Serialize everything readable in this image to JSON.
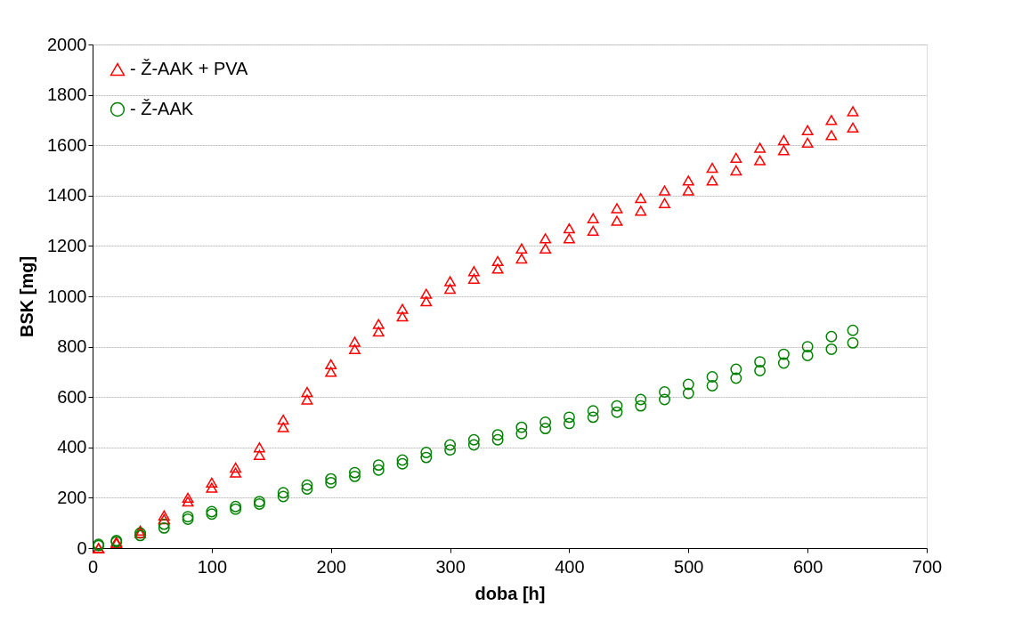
{
  "chart_data": {
    "type": "scatter",
    "xlabel": "doba [h]",
    "ylabel": "BSK [mg]",
    "x": [
      5,
      20,
      40,
      60,
      80,
      100,
      120,
      140,
      160,
      180,
      200,
      220,
      240,
      260,
      280,
      300,
      320,
      340,
      360,
      380,
      400,
      420,
      440,
      460,
      480,
      500,
      520,
      540,
      560,
      580,
      600,
      620,
      638
    ],
    "series": [
      {
        "name": "- Ž-AAK + PVA",
        "color": "#ff0000",
        "marker": "triangle",
        "values": [
          0,
          25,
          70,
          130,
          200,
          260,
          320,
          400,
          510,
          620,
          730,
          820,
          890,
          950,
          1010,
          1060,
          1100,
          1140,
          1190,
          1230,
          1270,
          1310,
          1350,
          1390,
          1420,
          1460,
          1510,
          1550,
          1590,
          1620,
          1660,
          1700,
          1735
        ]
      },
      {
        "color": "#ff0000",
        "marker": "triangle",
        "values": [
          0,
          20,
          60,
          115,
          185,
          240,
          300,
          370,
          480,
          590,
          700,
          790,
          860,
          920,
          980,
          1030,
          1070,
          1110,
          1150,
          1190,
          1230,
          1260,
          1300,
          1340,
          1370,
          1420,
          1460,
          1500,
          1540,
          1580,
          1610,
          1640,
          1670
        ]
      },
      {
        "name": "- Ž-AAK",
        "color": "#008000",
        "marker": "circle",
        "values": [
          15,
          30,
          60,
          95,
          125,
          145,
          165,
          185,
          220,
          250,
          275,
          300,
          330,
          350,
          380,
          410,
          430,
          450,
          480,
          500,
          520,
          545,
          565,
          590,
          620,
          650,
          680,
          710,
          740,
          770,
          800,
          840,
          865
        ]
      },
      {
        "color": "#008000",
        "marker": "circle",
        "values": [
          10,
          25,
          50,
          80,
          115,
          135,
          155,
          175,
          205,
          235,
          260,
          285,
          310,
          335,
          360,
          390,
          410,
          430,
          455,
          475,
          495,
          520,
          540,
          565,
          590,
          615,
          645,
          675,
          705,
          735,
          765,
          790,
          815
        ]
      }
    ],
    "xlim": [
      0,
      700
    ],
    "xticks": [
      0,
      100,
      200,
      300,
      400,
      500,
      600,
      700
    ],
    "ylim": [
      0,
      2000
    ],
    "yticks": [
      0,
      200,
      400,
      600,
      800,
      1000,
      1200,
      1400,
      1600,
      1800,
      2000
    ],
    "grid": "y",
    "legend": "top left"
  }
}
